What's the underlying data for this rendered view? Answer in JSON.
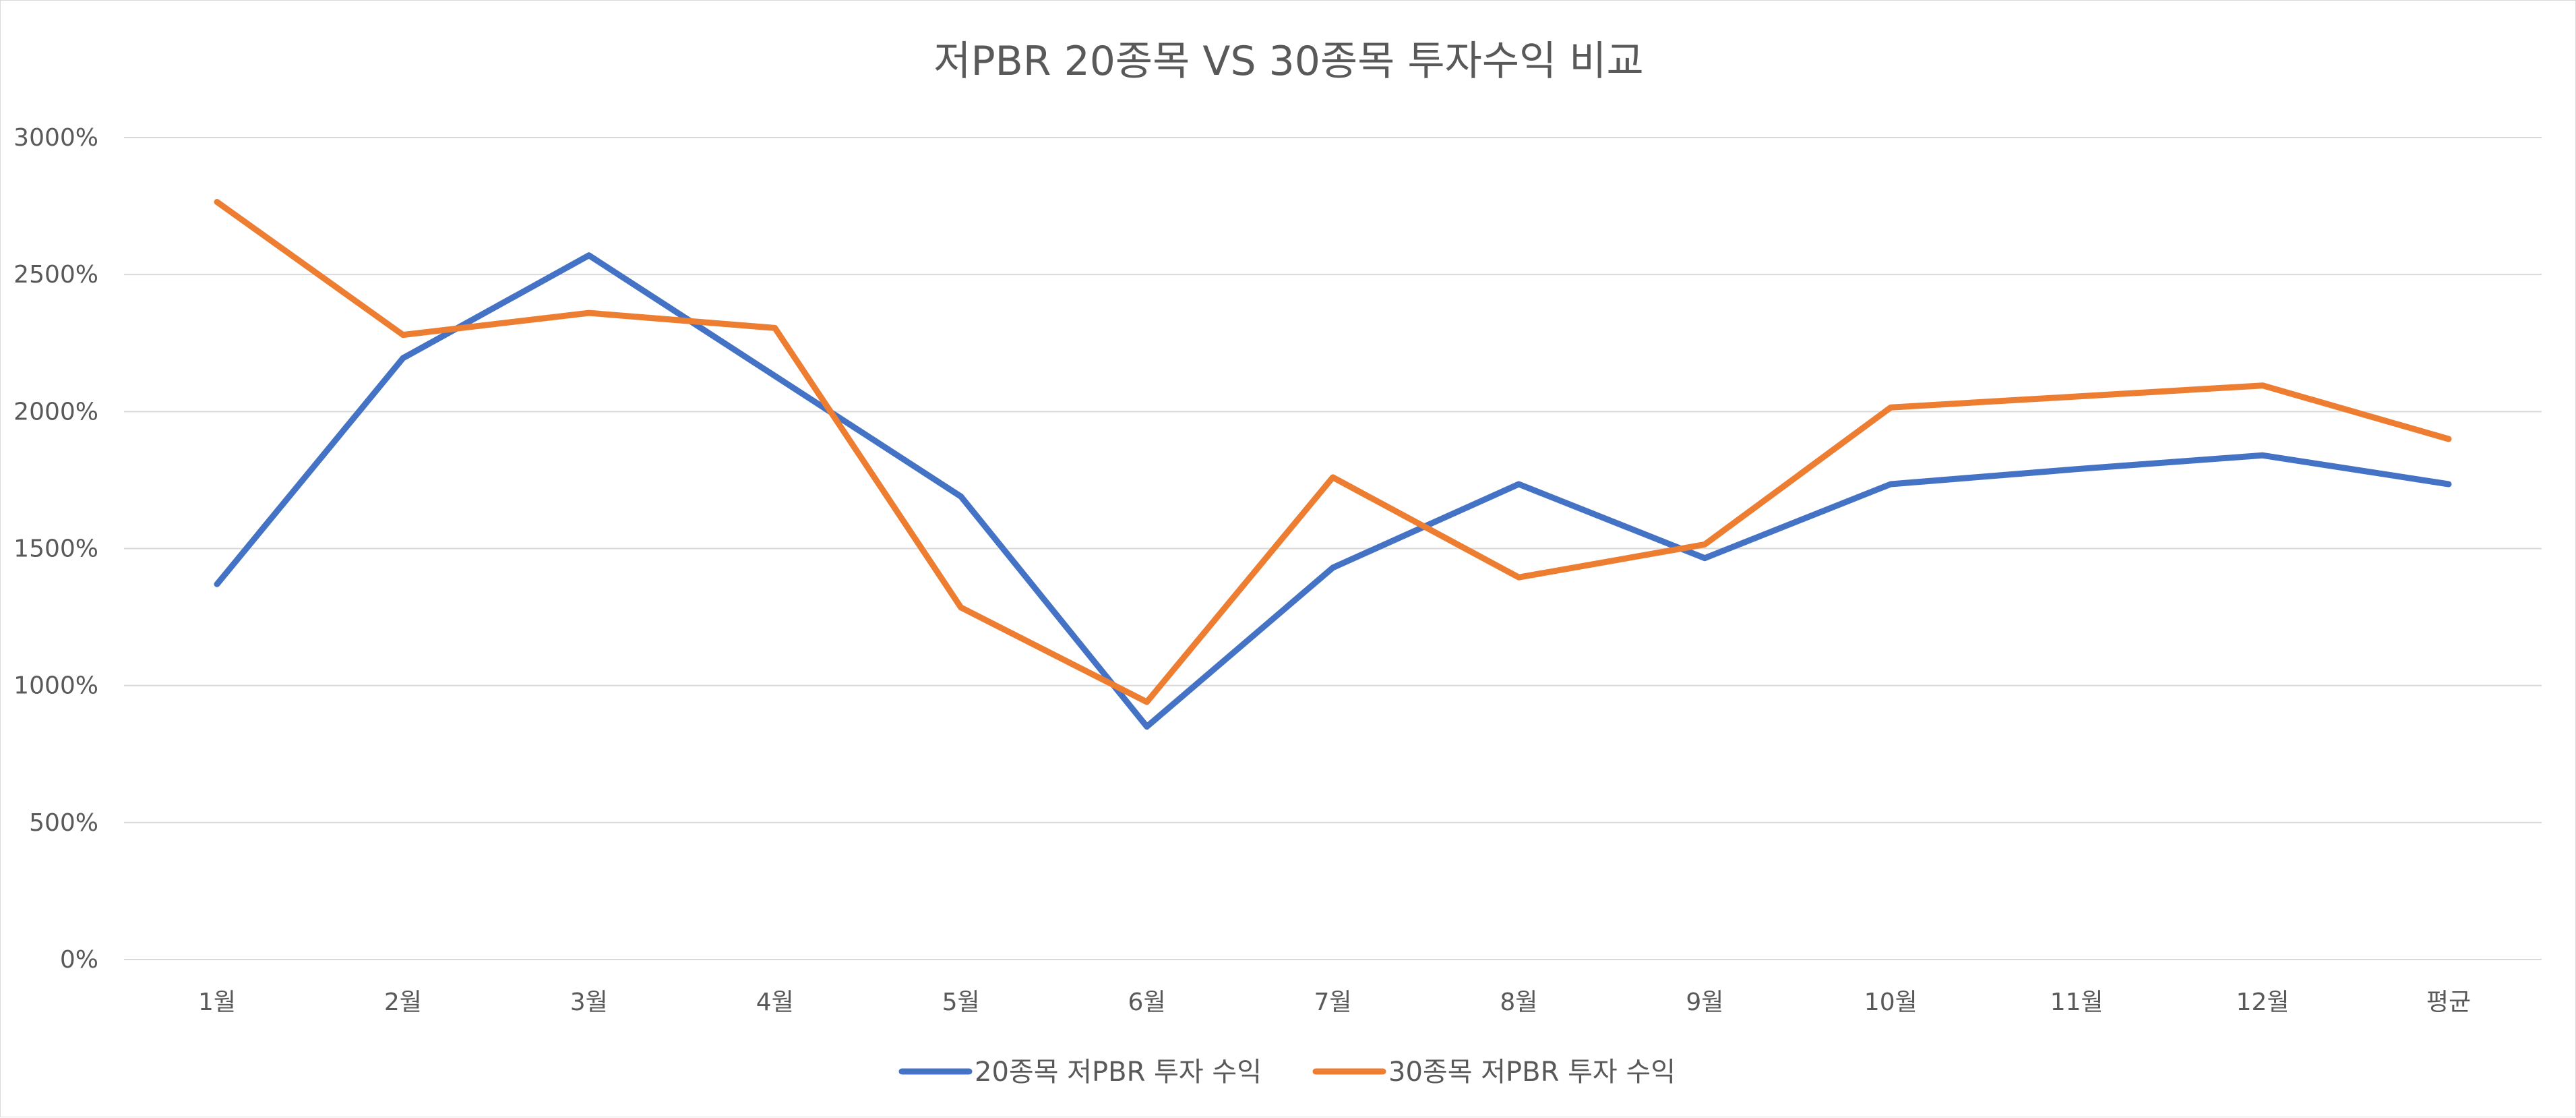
{
  "chart_data": {
    "type": "line",
    "title": "저PBR 20종목 VS 30종목 투자수익 비교",
    "xlabel": "",
    "ylabel": "",
    "categories": [
      "1월",
      "2월",
      "3월",
      "4월",
      "5월",
      "6월",
      "7월",
      "8월",
      "9월",
      "10월",
      "11월",
      "12월",
      "평균"
    ],
    "y_ticks": [
      "0%",
      "500%",
      "1000%",
      "1500%",
      "2000%",
      "2500%",
      "3000%"
    ],
    "ylim": [
      0,
      3000
    ],
    "y_unit": "%",
    "grid": true,
    "legend_position": "bottom",
    "series": [
      {
        "name": "20종목 저PBR 투자 수익",
        "color": "#4472C4",
        "values": [
          1370,
          2195,
          2570,
          2130,
          1690,
          850,
          1430,
          1735,
          1465,
          1735,
          1790,
          1840,
          1735
        ]
      },
      {
        "name": "30종목 저PBR 투자 수익",
        "color": "#ED7D31",
        "values": [
          2765,
          2280,
          2360,
          2305,
          1285,
          940,
          1760,
          1395,
          1515,
          2015,
          2055,
          2095,
          1900
        ]
      }
    ]
  }
}
